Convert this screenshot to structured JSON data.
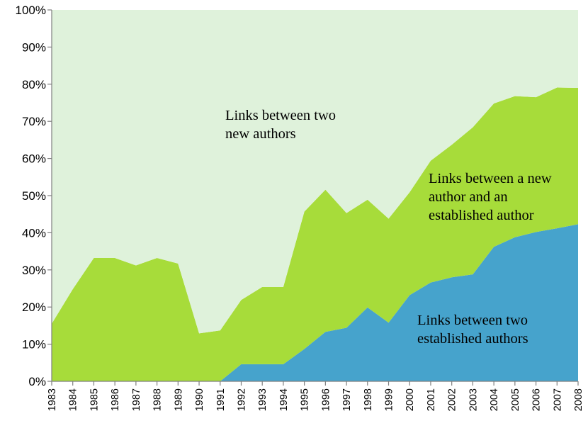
{
  "chart_data": {
    "type": "area",
    "stacked": true,
    "percent": true,
    "x": [
      1983,
      1984,
      1985,
      1986,
      1987,
      1988,
      1989,
      1990,
      1991,
      1992,
      1993,
      1994,
      1995,
      1996,
      1997,
      1998,
      1999,
      2000,
      2001,
      2002,
      2003,
      2004,
      2005,
      2006,
      2007,
      2008
    ],
    "x_labels": [
      "1983",
      "1984",
      "1985",
      "1986",
      "1987",
      "1988",
      "1989",
      "1990",
      "1991",
      "1992",
      "1993",
      "1994",
      "1995",
      "1996",
      "1997",
      "1998",
      "1999",
      "2000",
      "2001",
      "2002",
      "2003",
      "2004",
      "2005",
      "2006",
      "2007",
      "2008"
    ],
    "y_ticks": [
      "0%",
      "10%",
      "20%",
      "30%",
      "40%",
      "50%",
      "60%",
      "70%",
      "80%",
      "90%",
      "100%"
    ],
    "ylim": [
      0,
      100
    ],
    "series": [
      {
        "name": "Links between two established authors",
        "color": "#46a3cc",
        "values": [
          0,
          0,
          0,
          0,
          0,
          0,
          0,
          0,
          0,
          4.6,
          4.6,
          4.6,
          8.7,
          13.3,
          14.4,
          19.9,
          15.8,
          23.2,
          26.6,
          28.0,
          28.8,
          36.2,
          38.8,
          40.2,
          41.2,
          42.3
        ]
      },
      {
        "name": "Links between a new author and an established author",
        "color": "#a7dc3a",
        "values": [
          15.5,
          24.8,
          33.2,
          33.2,
          31.2,
          33.2,
          31.7,
          12.9,
          13.7,
          17.3,
          20.8,
          20.8,
          37.0,
          38.3,
          30.9,
          29.0,
          28.0,
          27.7,
          32.8,
          35.7,
          39.6,
          38.6,
          38.0,
          36.3,
          37.9,
          36.7
        ]
      },
      {
        "name": "Links between two new authors",
        "color": "#dff2db",
        "values": [
          84.5,
          75.2,
          66.8,
          66.8,
          68.8,
          66.8,
          68.3,
          87.1,
          86.3,
          78.1,
          74.6,
          74.6,
          54.3,
          48.4,
          54.7,
          51.1,
          56.2,
          49.1,
          40.6,
          36.3,
          31.6,
          25.2,
          23.2,
          23.5,
          20.9,
          21.0
        ]
      }
    ],
    "annotations": [
      {
        "series": 2,
        "lines": [
          "Links between two",
          "new authors"
        ]
      },
      {
        "series": 1,
        "lines": [
          "Links between a new",
          "author and an",
          "established author"
        ]
      },
      {
        "series": 0,
        "lines": [
          "Links between two",
          "established authors"
        ]
      }
    ]
  }
}
